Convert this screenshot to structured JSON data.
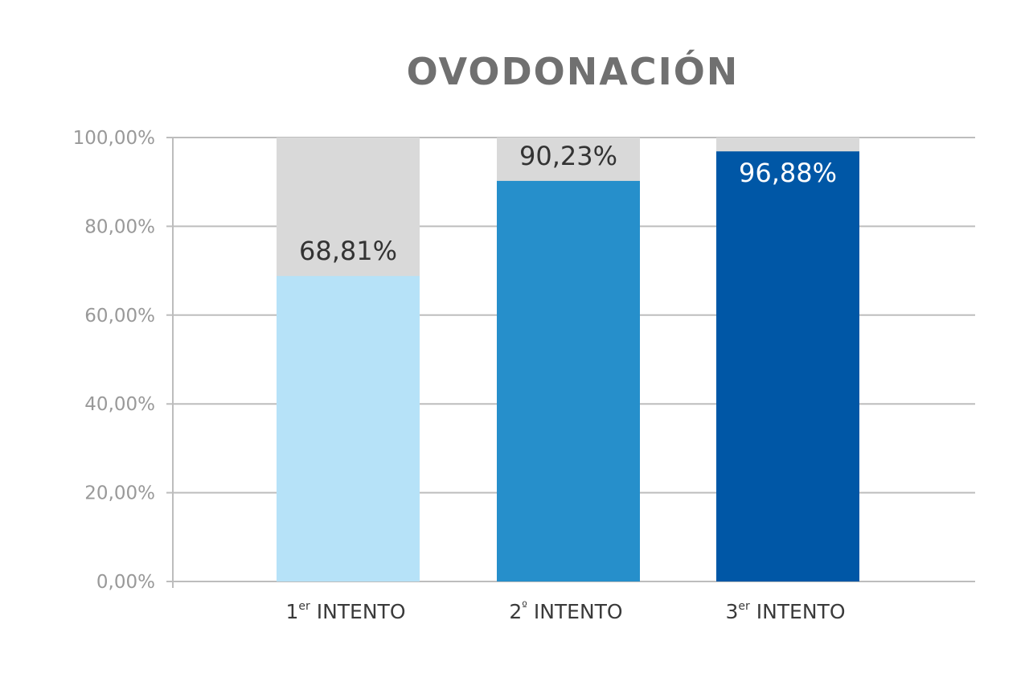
{
  "chart_data": {
    "type": "bar",
    "title": "OVODONACIÓN",
    "categories": [
      {
        "main": "1",
        "sup": "er",
        "rest": " INTENTO"
      },
      {
        "main": "2",
        "sup": "º",
        "rest": " INTENTO"
      },
      {
        "main": "3",
        "sup": "er",
        "rest": " INTENTO"
      }
    ],
    "values": [
      68.81,
      90.23,
      96.88
    ],
    "value_labels": [
      "68,81%",
      "90,23%",
      "96,88%"
    ],
    "background_value": 100,
    "ylim": [
      0,
      100
    ],
    "yticks": [
      "0,00%",
      "20,00%",
      "40,00%",
      "60,00%",
      "80,00%",
      "100,00%"
    ],
    "grid": true,
    "colors": {
      "bars": [
        "#b6e2f8",
        "#268fcb",
        "#0057a6"
      ],
      "background_bar": "#d9d9d9",
      "labels": [
        "#333333",
        "#333333",
        "#ffffff"
      ],
      "grid": "#bdbdbd",
      "title": "#707070"
    }
  }
}
